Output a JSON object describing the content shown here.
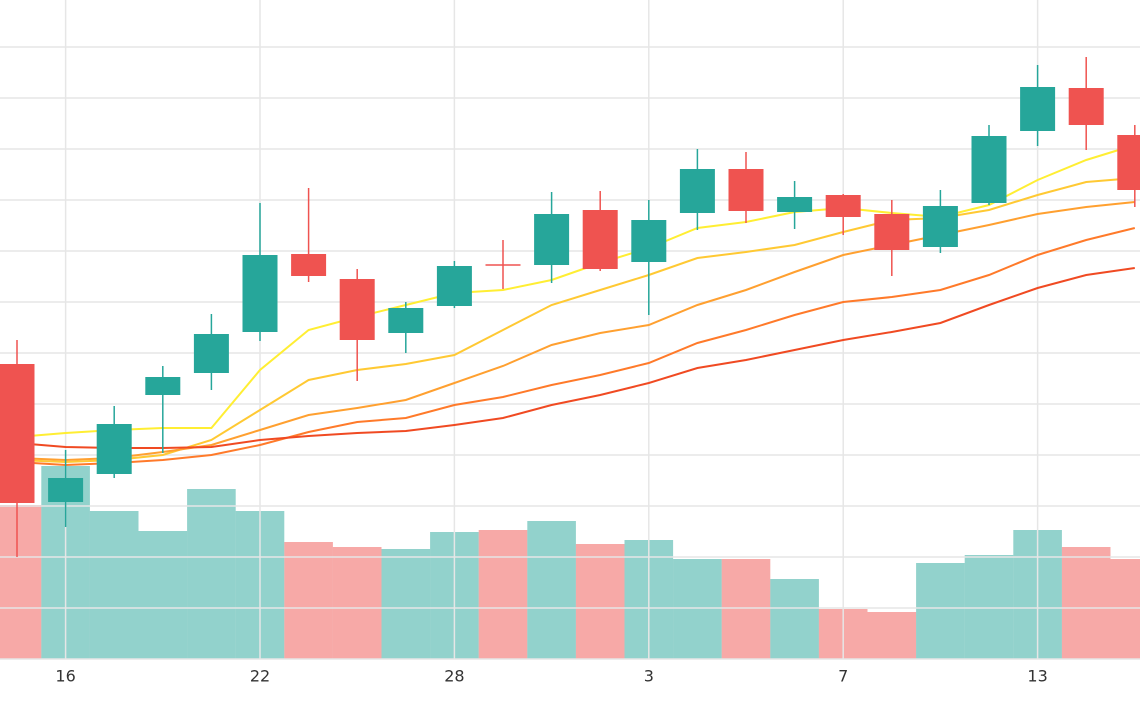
{
  "chart_data": {
    "type": "candlestick",
    "categories": [
      null,
      "16",
      null,
      null,
      null,
      "22",
      null,
      null,
      null,
      "28",
      null,
      null,
      null,
      "3",
      null,
      null,
      null,
      "7",
      null,
      null,
      null,
      "13",
      null,
      null
    ],
    "open": [
      346,
      208,
      236,
      315,
      337,
      378,
      456,
      431,
      377,
      404,
      445,
      445,
      500,
      448,
      497,
      541,
      498,
      515,
      496,
      463,
      507,
      579,
      622,
      575
    ],
    "high": [
      370,
      260,
      304,
      344,
      396,
      507,
      522,
      441,
      408,
      449,
      470,
      518,
      519,
      510,
      561,
      558,
      529,
      516,
      510,
      520,
      585,
      645,
      653,
      585
    ],
    "low": [
      153,
      183,
      232,
      257,
      320,
      369,
      428,
      329,
      357,
      402,
      421,
      427,
      439,
      395,
      480,
      487,
      481,
      475,
      434,
      457,
      505,
      564,
      560,
      503
    ],
    "close": [
      207,
      232,
      286,
      333,
      376,
      455,
      434,
      370,
      402,
      444,
      445,
      496,
      441,
      490,
      541,
      499,
      513,
      493,
      460,
      504,
      574,
      623,
      585,
      520
    ],
    "volume": [
      154,
      193,
      148,
      128,
      170,
      148,
      117,
      112,
      110,
      127,
      129,
      138,
      115,
      119,
      100,
      100,
      80,
      50,
      47,
      96,
      104,
      129,
      112,
      100
    ],
    "up_color": "#26a69a",
    "down_color": "#ef5350",
    "series": [
      {
        "color": "#ffee33",
        "values": [
          273,
          277,
          280,
          282,
          282,
          340,
          380,
          393,
          405,
          417,
          420,
          430,
          447,
          462,
          482,
          488,
          498,
          502,
          497,
          493,
          505,
          530,
          550,
          565
        ]
      },
      {
        "color": "#ffc933",
        "values": [
          250,
          248,
          250,
          255,
          270,
          300,
          330,
          340,
          346,
          355,
          380,
          405,
          420,
          435,
          452,
          458,
          465,
          478,
          490,
          492,
          500,
          515,
          528,
          532
        ]
      },
      {
        "color": "#ffa030",
        "values": [
          252,
          250,
          252,
          258,
          265,
          280,
          295,
          302,
          310,
          327,
          344,
          365,
          377,
          385,
          405,
          420,
          438,
          455,
          465,
          475,
          485,
          496,
          503,
          508
        ]
      },
      {
        "color": "#ff7a2a",
        "values": [
          248,
          245,
          247,
          250,
          255,
          265,
          278,
          288,
          292,
          305,
          313,
          325,
          335,
          347,
          367,
          380,
          395,
          408,
          413,
          420,
          435,
          455,
          470,
          482
        ]
      },
      {
        "color": "#f04a22",
        "values": [
          267,
          263,
          262,
          262,
          263,
          270,
          274,
          277,
          279,
          285,
          292,
          305,
          315,
          327,
          342,
          350,
          360,
          370,
          378,
          387,
          405,
          422,
          435,
          442
        ]
      }
    ],
    "ylim": [
      0,
      710
    ],
    "yticks": [
      51,
      102,
      153,
      204,
      255,
      306,
      357,
      408,
      459,
      510,
      561,
      612,
      663
    ],
    "y2lim": [
      0,
      659
    ],
    "grid": true
  }
}
